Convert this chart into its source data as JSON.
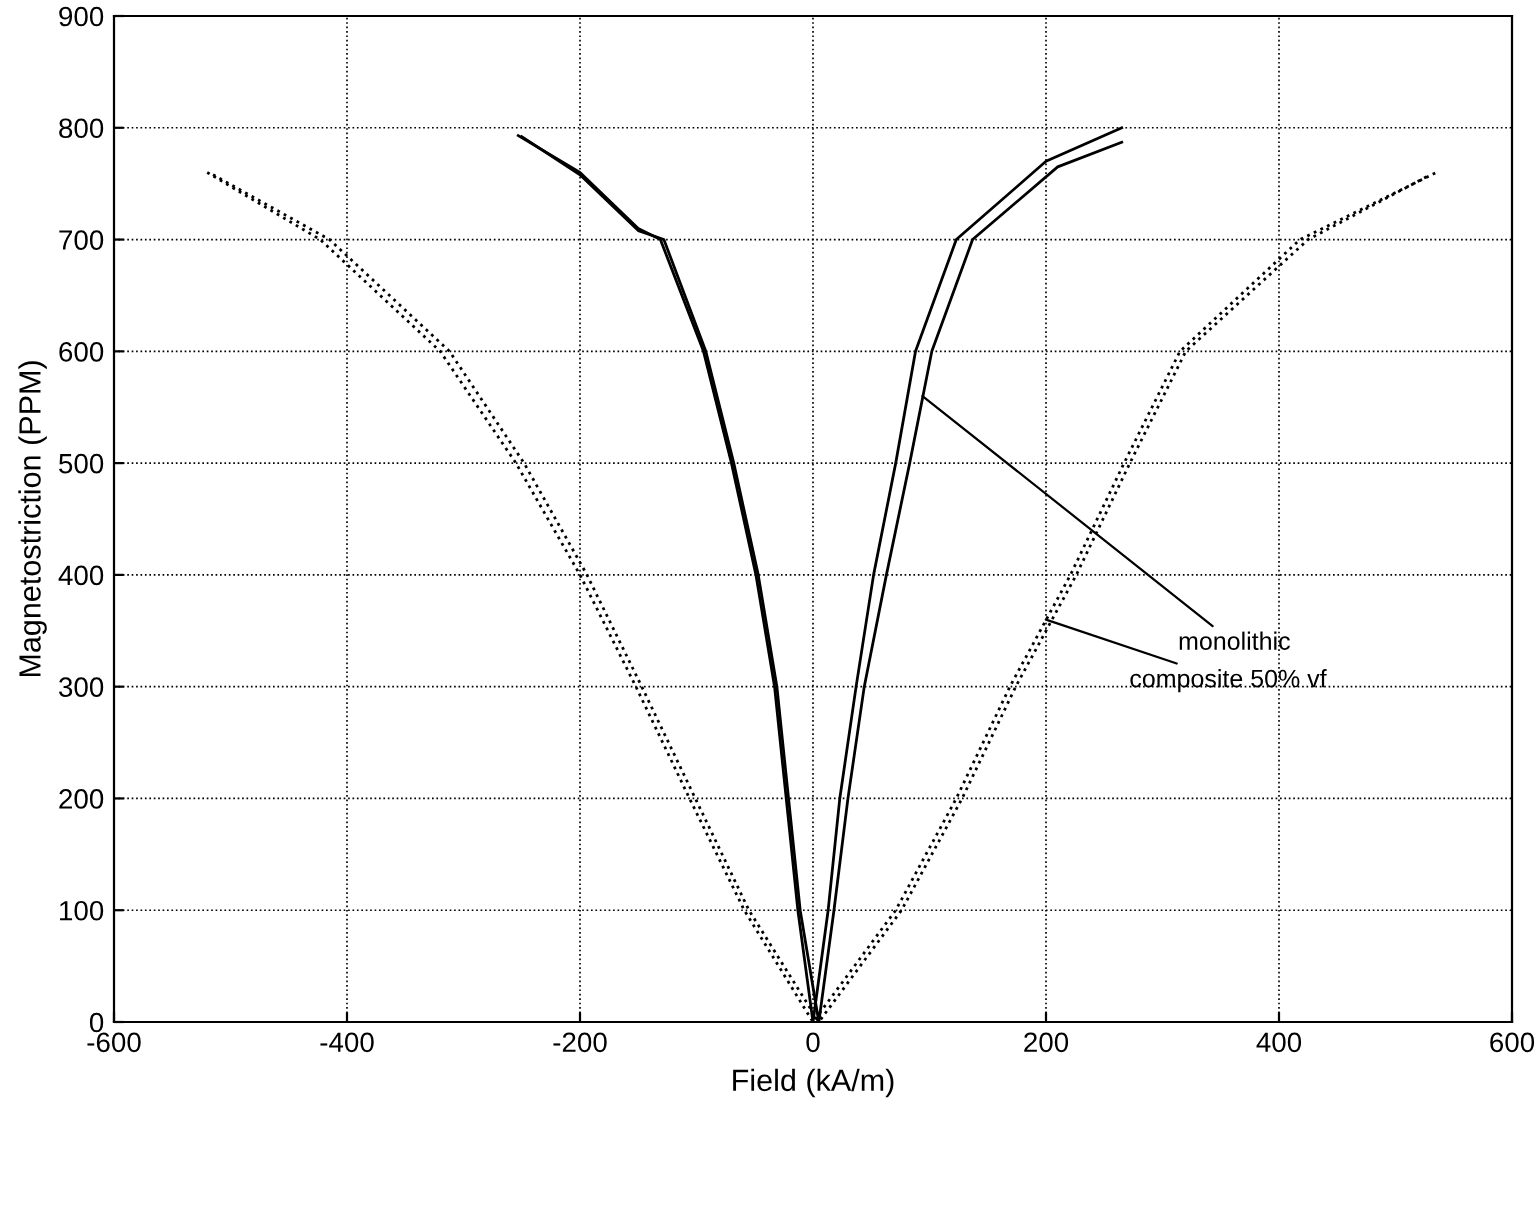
{
  "chart_data": {
    "type": "line",
    "xlabel": "Field (kA/m)",
    "ylabel": "Magnetostriction (PPM)",
    "xlim": [
      -600,
      600
    ],
    "ylim": [
      0,
      900
    ],
    "xticks": [
      -600,
      -400,
      -200,
      0,
      200,
      400,
      600
    ],
    "yticks": [
      0,
      100,
      200,
      300,
      400,
      500,
      600,
      700,
      800,
      900
    ],
    "grid": true,
    "legend": false,
    "series": [
      {
        "color": "#000000",
        "line_style": "solid",
        "x": [
          -253,
          -200,
          -150,
          -131,
          -94,
          -70,
          -49,
          -33,
          -23,
          -13,
          0,
          13,
          23,
          37,
          52,
          71,
          88,
          123,
          200,
          265
        ],
        "values": [
          793,
          760,
          710,
          700,
          600,
          500,
          400,
          300,
          200,
          100,
          0,
          100,
          200,
          300,
          400,
          500,
          600,
          700,
          770,
          800
        ]
      },
      {
        "color": "#000000",
        "line_style": "solid",
        "x": [
          -250,
          -200,
          -150,
          -128,
          -92,
          -68,
          -47,
          -31,
          -21,
          -11,
          5,
          18,
          30,
          44,
          63,
          83,
          102,
          137,
          210,
          265
        ],
        "values": [
          792,
          758,
          708,
          700,
          600,
          500,
          400,
          300,
          200,
          100,
          0,
          100,
          200,
          300,
          400,
          500,
          600,
          700,
          765,
          787
        ]
      },
      {
        "color": "#000000",
        "line_style": "dotted",
        "x": [
          -520,
          -423,
          -320,
          -255,
          -200,
          -152,
          -106,
          -59,
          0,
          71,
          123,
          169,
          221,
          267,
          315,
          418,
          535
        ],
        "values": [
          760,
          700,
          600,
          500,
          400,
          300,
          200,
          100,
          0,
          100,
          200,
          300,
          400,
          500,
          600,
          700,
          760
        ]
      },
      {
        "color": "#000000",
        "line_style": "dotted",
        "x": [
          -515,
          -415,
          -312,
          -248,
          -194,
          -147,
          -101,
          -55,
          5,
          76,
          128,
          174,
          226,
          272,
          320,
          425,
          530
        ],
        "values": [
          758,
          700,
          600,
          500,
          400,
          300,
          200,
          100,
          0,
          100,
          200,
          300,
          400,
          500,
          600,
          700,
          758
        ]
      }
    ],
    "annotations": [
      {
        "text": "monolithic",
        "x": 94,
        "y": 560
      },
      {
        "text": "composite 50% vf",
        "x": 200,
        "y": 360
      }
    ]
  }
}
